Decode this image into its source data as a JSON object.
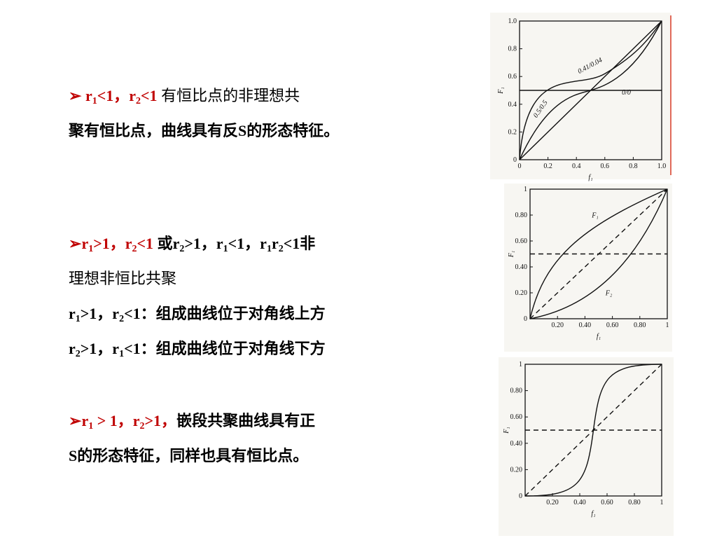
{
  "blocks": [
    {
      "bullet": "➢",
      "lines": [
        [
          "r",
          "1",
          "<1，r",
          "2",
          "<1",
          "有恒比点的非理想共"
        ],
        [
          "聚有恒比点，曲线具有反S的形态特征。"
        ]
      ]
    },
    {
      "bullet": "➢",
      "lines": [
        [
          "r",
          "1",
          ">1，r",
          "2",
          "<1",
          "或r",
          "2",
          ">1，r",
          "1",
          "<1，r",
          "1",
          "r",
          "2",
          "<1非"
        ],
        [
          "理想非恒比共聚"
        ],
        [
          "r",
          "1",
          ">1，r",
          "2",
          "<1：组成曲线位于对角线上方"
        ],
        [
          "r",
          "2",
          ">1，r",
          "1",
          "<1：组成曲线位于对角线下方"
        ]
      ]
    },
    {
      "bullet": "➢",
      "lines": [
        [
          "r",
          "1",
          " > 1，r",
          "2",
          ">1，",
          "嵌段共聚曲线具有正"
        ],
        [
          "S的形态特征，同样也具有恒比点。"
        ]
      ]
    }
  ],
  "figures": [
    {
      "y_label": "F₁",
      "x_label": "f₁",
      "yticks": [
        "1.0",
        "0.8",
        "0.6",
        "0.4",
        "0.2",
        "0"
      ],
      "xticks": [
        "0",
        "0.2",
        "0.4",
        "0.6",
        "0.8",
        "1.0"
      ],
      "curve_labels": [
        "0.41/0.04",
        "0.5/0.5",
        "0/0"
      ]
    },
    {
      "y_label": "F₁",
      "x_label": "f₁",
      "yticks": [
        "1",
        "0.80",
        "0.60",
        "0.40",
        "0.20",
        "0"
      ],
      "xticks": [
        "0.20",
        "0.40",
        "0.60",
        "0.80",
        "1"
      ],
      "curve_labels": [
        "F₁",
        "F₂"
      ]
    },
    {
      "y_label": "F₁",
      "x_label": "f₁",
      "yticks": [
        "1",
        "0.80",
        "0.60",
        "0.40",
        "0.20",
        "0"
      ],
      "xticks": [
        "0.20",
        "0.40",
        "0.60",
        "0.80",
        "1"
      ]
    }
  ]
}
